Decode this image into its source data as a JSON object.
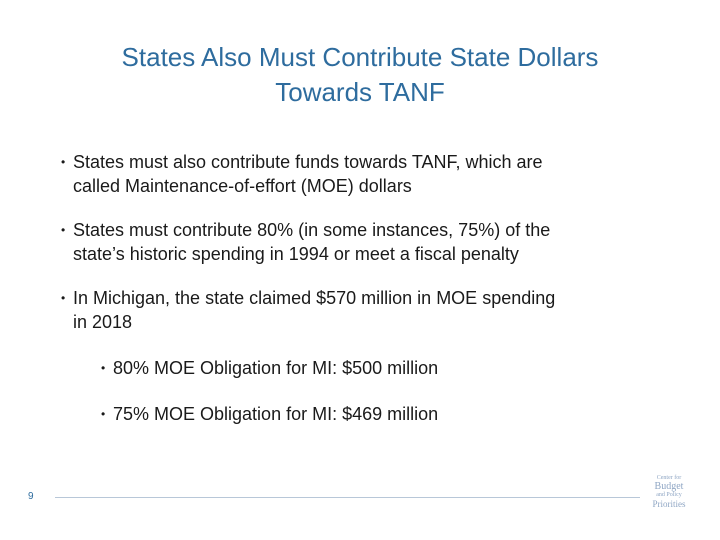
{
  "slide": {
    "title_line1": "States Also Must Contribute State Dollars",
    "title_line2": "Towards TANF",
    "bullets": [
      {
        "line1": "States must also contribute funds towards TANF, which are",
        "line2": "called Maintenance-of-effort (MOE) dollars"
      },
      {
        "line1": "States must contribute 80% (in some instances, 75%) of the",
        "line2": "state’s historic spending in 1994 or meet a fiscal penalty"
      },
      {
        "line1": "In Michigan, the state claimed $570 million in MOE spending",
        "line2": "in 2018"
      }
    ],
    "sub_bullets": [
      "80% MOE Obligation for MI: $500 million",
      "75% MOE Obligation for MI: $469 million"
    ],
    "bullet_glyph": "•",
    "page_number": "9",
    "logo": {
      "line1": "Center for",
      "line2": "Budget",
      "line3": "and Policy",
      "line4": "Priorities"
    }
  },
  "colors": {
    "title": "#2e6c9e",
    "body_text": "#1a1a1a",
    "footer_rule": "#b8c7d8",
    "logo": "#8fa6c4"
  },
  "icons": {
    "logo": "cbpp-logo-icon"
  }
}
